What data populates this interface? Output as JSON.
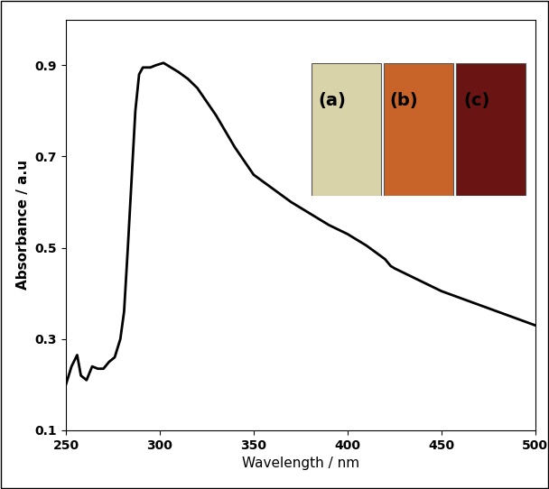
{
  "chart_data": {
    "type": "line",
    "x_label": "Wavelength / nm",
    "y_label": "Absorbance / a.u",
    "annotations": [
      "(a)",
      "(b)",
      "(c)"
    ],
    "x": [
      250,
      253,
      256,
      258,
      261,
      264,
      267,
      270,
      273,
      276,
      279,
      281,
      283,
      285,
      287,
      289,
      291,
      295,
      298,
      302,
      306,
      310,
      315,
      320,
      325,
      330,
      335,
      340,
      345,
      350,
      355,
      360,
      370,
      380,
      390,
      400,
      410,
      420,
      423,
      425,
      430,
      440,
      450,
      460,
      470,
      480,
      490,
      500
    ],
    "values": [
      0.2,
      0.24,
      0.265,
      0.22,
      0.21,
      0.24,
      0.235,
      0.235,
      0.25,
      0.26,
      0.3,
      0.36,
      0.5,
      0.65,
      0.8,
      0.88,
      0.895,
      0.895,
      0.9,
      0.905,
      0.895,
      0.885,
      0.87,
      0.85,
      0.82,
      0.79,
      0.755,
      0.72,
      0.69,
      0.66,
      0.645,
      0.63,
      0.6,
      0.575,
      0.55,
      0.53,
      0.505,
      0.475,
      0.46,
      0.455,
      0.445,
      0.425,
      0.405,
      0.39,
      0.375,
      0.36,
      0.345,
      0.33
    ],
    "color": "#000000",
    "xlim": [
      250,
      500
    ],
    "xticks": [
      250,
      300,
      350,
      400,
      450,
      500
    ],
    "ylim": [
      0.1,
      1.0
    ],
    "yticks": [
      0.1,
      0.3,
      0.5,
      0.7,
      0.9
    ],
    "grid": false
  }
}
